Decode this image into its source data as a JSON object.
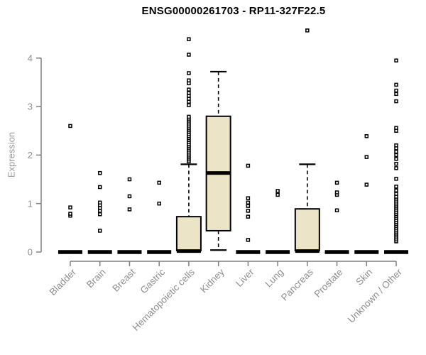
{
  "title": "ENSG00000261703 - RP11-327F22.5",
  "chart_data": {
    "type": "boxplot",
    "title": "ENSG00000261703 - RP11-327F22.5",
    "xlabel": "",
    "ylabel": "Expression",
    "ylim": [
      0,
      4.6
    ],
    "yticks": [
      0,
      1,
      2,
      3,
      4
    ],
    "grid": false,
    "legend": "none",
    "categories": [
      "Bladder",
      "Brain",
      "Breast",
      "Gastric",
      "Hematopoietic cells",
      "Kidney",
      "Liver",
      "Lung",
      "Pancreas",
      "Prostate",
      "Skin",
      "Unknown / Other"
    ],
    "series": [
      {
        "name": "Bladder",
        "q1": 0,
        "median": 0,
        "q3": 0,
        "whisker_low": 0,
        "whisker_high": 0,
        "outliers": [
          0.75,
          0.79,
          0.92,
          2.6
        ]
      },
      {
        "name": "Brain",
        "q1": 0,
        "median": 0,
        "q3": 0,
        "whisker_low": 0,
        "whisker_high": 0,
        "outliers": [
          0.44,
          0.78,
          0.85,
          0.91,
          0.97,
          1.02,
          1.34,
          1.63
        ]
      },
      {
        "name": "Breast",
        "q1": 0,
        "median": 0,
        "q3": 0,
        "whisker_low": 0,
        "whisker_high": 0,
        "outliers": [
          0.88,
          1.15,
          1.5
        ]
      },
      {
        "name": "Gastric",
        "q1": 0,
        "median": 0,
        "q3": 0,
        "whisker_low": 0,
        "whisker_high": 0,
        "outliers": [
          1.0,
          1.43
        ]
      },
      {
        "name": "Hematopoietic cells",
        "q1": 0.03,
        "median": 0.02,
        "q3": 0.73,
        "whisker_low": 0.03,
        "whisker_high": 1.81,
        "outliers": [
          1.87,
          1.91,
          1.95,
          1.99,
          2.03,
          2.07,
          2.11,
          2.15,
          2.19,
          2.23,
          2.27,
          2.31,
          2.35,
          2.39,
          2.43,
          2.47,
          2.51,
          2.55,
          2.59,
          2.63,
          2.67,
          2.71,
          2.75,
          2.79,
          3.03,
          3.1,
          3.16,
          3.22,
          3.28,
          3.35,
          3.48,
          3.54,
          3.69,
          4.07,
          4.39
        ]
      },
      {
        "name": "Kidney",
        "q1": 0.44,
        "median": 1.63,
        "q3": 2.8,
        "whisker_low": 0.04,
        "whisker_high": 3.72,
        "outliers": []
      },
      {
        "name": "Liver",
        "q1": 0,
        "median": 0,
        "q3": 0,
        "whisker_low": 0,
        "whisker_high": 0,
        "outliers": [
          0.25,
          0.73,
          0.85,
          0.95,
          1.02,
          1.11,
          1.78
        ]
      },
      {
        "name": "Lung",
        "q1": 0,
        "median": 0,
        "q3": 0,
        "whisker_low": 0,
        "whisker_high": 0,
        "outliers": [
          1.18,
          1.26
        ]
      },
      {
        "name": "Pancreas",
        "q1": 0.03,
        "median": 0.02,
        "q3": 0.89,
        "whisker_low": 0.03,
        "whisker_high": 1.81,
        "outliers": [
          4.57
        ]
      },
      {
        "name": "Prostate",
        "q1": 0,
        "median": 0,
        "q3": 0,
        "whisker_low": 0,
        "whisker_high": 0,
        "outliers": [
          0.86,
          1.18,
          1.23,
          1.43
        ]
      },
      {
        "name": "Skin",
        "q1": 0,
        "median": 0,
        "q3": 0,
        "whisker_low": 0,
        "whisker_high": 0,
        "outliers": [
          1.39,
          1.96,
          2.39
        ]
      },
      {
        "name": "Unknown / Other",
        "q1": 0,
        "median": 0,
        "q3": 0,
        "whisker_low": 0,
        "whisker_high": 0,
        "outliers": [
          0.22,
          0.26,
          0.3,
          0.34,
          0.38,
          0.42,
          0.46,
          0.5,
          0.54,
          0.58,
          0.62,
          0.66,
          0.7,
          0.74,
          0.78,
          0.82,
          0.86,
          0.9,
          0.94,
          0.98,
          1.02,
          1.06,
          1.1,
          1.14,
          1.2,
          1.27,
          1.35,
          1.51,
          1.73,
          1.82,
          1.92,
          2.0,
          2.07,
          2.14,
          2.2,
          2.5,
          2.56,
          3.11,
          3.26,
          3.33,
          3.45,
          3.95
        ]
      }
    ],
    "colors": {
      "box_fill": "#ece4c6",
      "box_stroke": "#000000",
      "median": "#000000",
      "outlier_stroke": "#000000",
      "outlier_fill": "#ffffff",
      "axis_line": "#7f7f7f",
      "tick_label": "#8f8f8f",
      "title": "#000000",
      "background": "#ffffff"
    }
  }
}
